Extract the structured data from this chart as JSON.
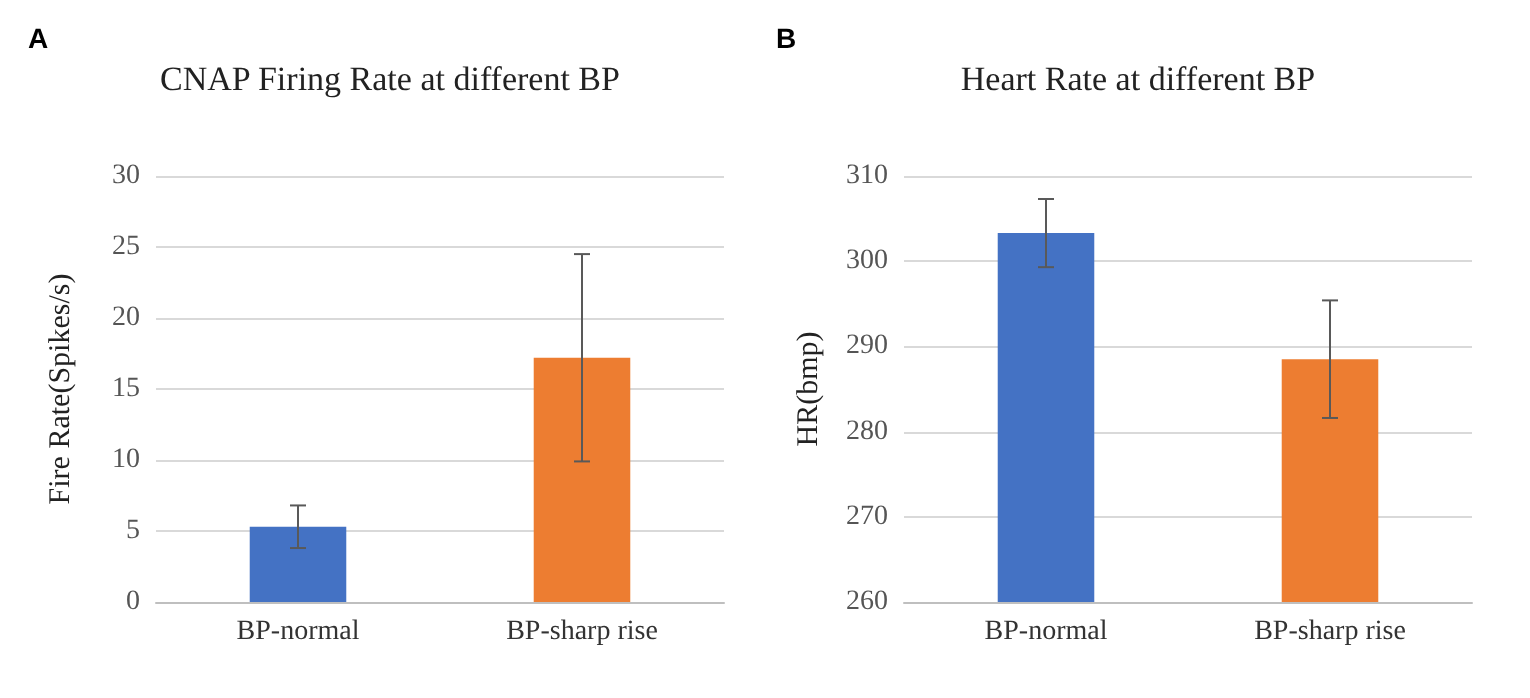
{
  "chart_data": [
    {
      "type": "bar",
      "title": "CNAP Firing Rate at different BP",
      "ylabel": "Fire Rate(Spikes/s)",
      "annotations": [
        "A"
      ],
      "categories": [
        "BP-normal",
        "BP-sharp rise"
      ],
      "values": [
        5.3,
        17.2
      ],
      "colors": [
        "#4472c4",
        "#ed7d31"
      ],
      "errors": [
        1.5,
        7.3
      ],
      "ylim": [
        0,
        30
      ],
      "yticks": [
        0,
        5,
        10,
        15,
        20,
        25,
        30
      ],
      "grid": "y"
    },
    {
      "type": "bar",
      "title": "Heart Rate at different BP",
      "ylabel": "HR(bmp)",
      "annotations": [
        "B"
      ],
      "categories": [
        "BP-normal",
        "BP-sharp rise"
      ],
      "values": [
        303.3,
        288.5
      ],
      "colors": [
        "#4472c4",
        "#ed7d31"
      ],
      "errors": [
        4,
        6.9
      ],
      "ylim": [
        260,
        310
      ],
      "yticks": [
        260,
        270,
        280,
        290,
        300,
        310
      ],
      "grid": "y"
    }
  ]
}
